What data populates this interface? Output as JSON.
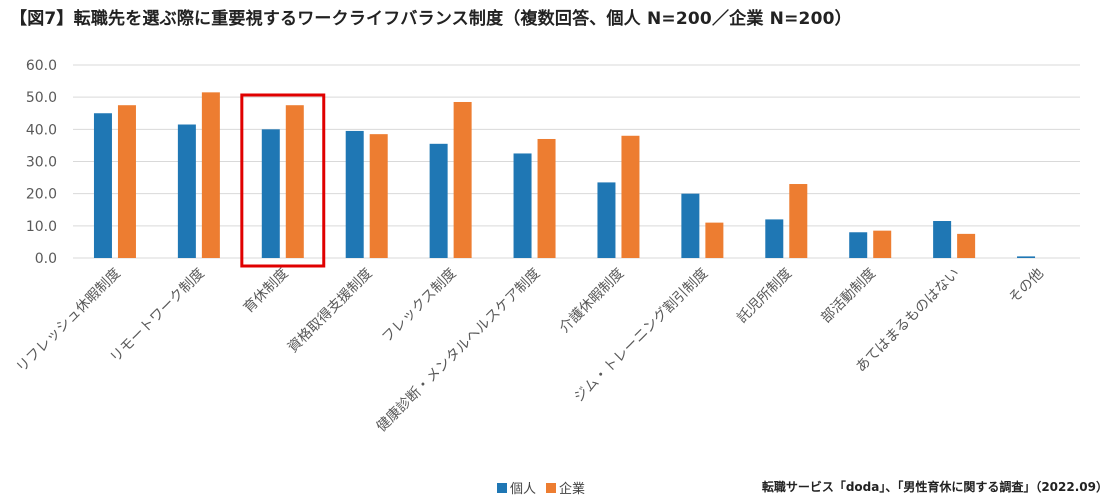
{
  "chart_data": {
    "type": "bar",
    "title": "【図7】転職先を選ぶ際に重要視するワークライフバランス制度（複数回答、個人 N=200／企業 N=200）",
    "categories": [
      "リフレッシュ休暇制度",
      "リモートワーク制度",
      "育休制度",
      "資格取得支援制度",
      "フレックス制度",
      "健康診断・メンタルヘルスケア制度",
      "介護休暇制度",
      "ジム・トレーニング割引制度",
      "託児所制度",
      "部活動制度",
      "あてはまるものはない",
      "その他"
    ],
    "series": [
      {
        "name": "個人",
        "color": "#1f77b4",
        "values": [
          45.0,
          41.5,
          40.0,
          39.5,
          35.5,
          32.5,
          23.5,
          20.0,
          12.0,
          8.0,
          11.5,
          0.5
        ]
      },
      {
        "name": "企業",
        "color": "#ed7d31",
        "values": [
          47.5,
          51.5,
          47.5,
          38.5,
          48.5,
          37.0,
          38.0,
          11.0,
          23.0,
          8.5,
          7.5,
          0.0
        ]
      }
    ],
    "y_ticks": [
      "0.0",
      "10.0",
      "20.0",
      "30.0",
      "40.0",
      "50.0",
      "60.0"
    ],
    "ylim": [
      0,
      60
    ],
    "grid": true,
    "legend_position": "bottom",
    "highlighted_category": "育休制度",
    "highlight_color": "#e00000",
    "xlabel": "",
    "ylabel": ""
  },
  "source_text": "転職サービス「doda」、「男性育休に関する調査」（2022.09）"
}
